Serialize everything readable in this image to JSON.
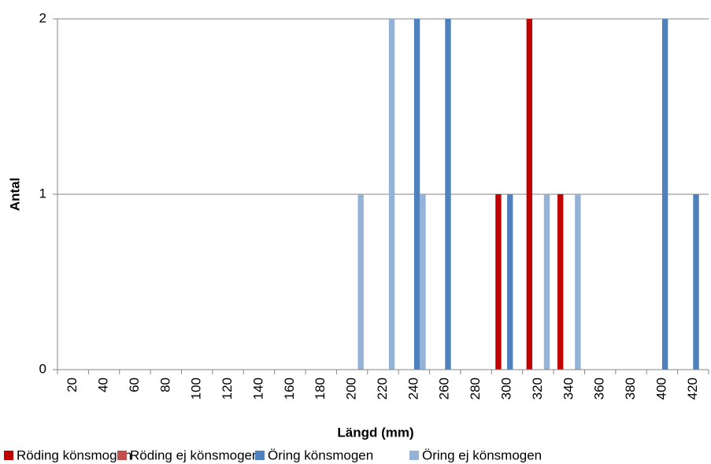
{
  "chart_data": {
    "type": "bar",
    "x_label": "Längd (mm)",
    "y_label": "Antal",
    "categories": [
      "20",
      "40",
      "60",
      "80",
      "100",
      "120",
      "140",
      "160",
      "180",
      "200",
      "220",
      "240",
      "260",
      "280",
      "300",
      "320",
      "340",
      "360",
      "380",
      "400",
      "420"
    ],
    "series": [
      {
        "name": "Röding könsmogen",
        "color": "#c00000",
        "values": [
          0,
          0,
          0,
          0,
          0,
          0,
          0,
          0,
          0,
          0,
          0,
          0,
          0,
          0,
          1,
          2,
          1,
          0,
          0,
          0,
          0
        ]
      },
      {
        "name": "Röding ej könsmogen",
        "color": "#c0504d",
        "values": [
          0,
          0,
          0,
          0,
          0,
          0,
          0,
          0,
          0,
          0,
          0,
          0,
          0,
          0,
          0,
          0,
          0,
          0,
          0,
          0,
          0
        ]
      },
      {
        "name": "Öring könsmogen",
        "color": "#4f81bd",
        "values": [
          0,
          0,
          0,
          0,
          0,
          0,
          0,
          0,
          0,
          0,
          0,
          2,
          2,
          0,
          1,
          0,
          0,
          0,
          0,
          2,
          1
        ]
      },
      {
        "name": "Öring ej könsmogen",
        "color": "#95b3d7",
        "values": [
          0,
          0,
          0,
          0,
          0,
          0,
          0,
          0,
          0,
          1,
          2,
          1,
          0,
          0,
          0,
          1,
          1,
          0,
          0,
          0,
          0
        ]
      }
    ],
    "ylim": [
      0,
      2
    ],
    "yticks": [
      0,
      1,
      2
    ],
    "grid": true
  }
}
